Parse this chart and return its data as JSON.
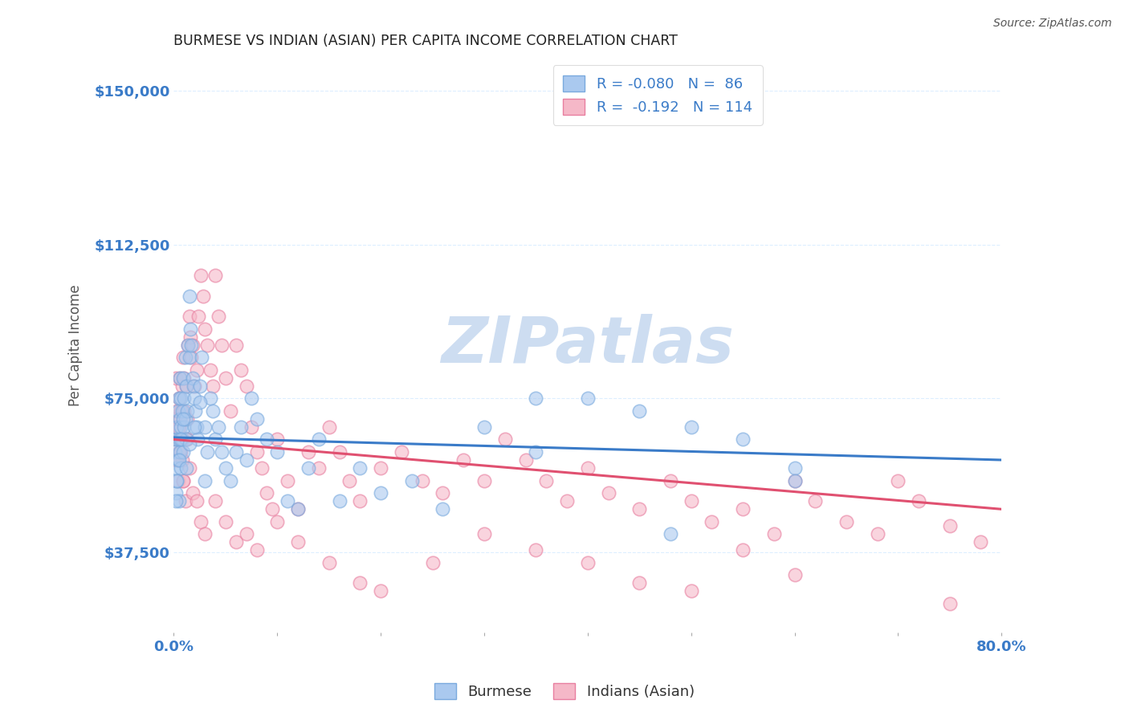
{
  "title": "BURMESE VS INDIAN (ASIAN) PER CAPITA INCOME CORRELATION CHART",
  "source": "Source: ZipAtlas.com",
  "ylabel": "Per Capita Income",
  "xmin": 0.0,
  "xmax": 0.8,
  "ymin": 18000,
  "ymax": 158000,
  "legend_blue_R": "-0.080",
  "legend_blue_N": "86",
  "legend_pink_R": "-0.192",
  "legend_pink_N": "114",
  "blue_fill_color": "#aac9ef",
  "pink_fill_color": "#f5b8c8",
  "blue_edge_color": "#7aaade",
  "pink_edge_color": "#e87fa0",
  "blue_line_color": "#3a7bc8",
  "pink_line_color": "#e05070",
  "watermark_color": "#c8daf0",
  "background_color": "#ffffff",
  "grid_color": "#ddeeff",
  "axis_label_color": "#3a7bc8",
  "title_color": "#222222",
  "legend_value_color": "#3a7bc8",
  "blue_points_x": [
    0.001,
    0.002,
    0.002,
    0.003,
    0.003,
    0.003,
    0.004,
    0.004,
    0.005,
    0.005,
    0.005,
    0.006,
    0.006,
    0.006,
    0.007,
    0.007,
    0.007,
    0.008,
    0.008,
    0.009,
    0.009,
    0.01,
    0.01,
    0.011,
    0.011,
    0.012,
    0.012,
    0.013,
    0.014,
    0.015,
    0.015,
    0.016,
    0.017,
    0.018,
    0.019,
    0.02,
    0.021,
    0.022,
    0.023,
    0.025,
    0.027,
    0.03,
    0.032,
    0.035,
    0.038,
    0.04,
    0.043,
    0.046,
    0.05,
    0.055,
    0.06,
    0.065,
    0.07,
    0.075,
    0.08,
    0.09,
    0.1,
    0.11,
    0.12,
    0.13,
    0.14,
    0.16,
    0.18,
    0.2,
    0.23,
    0.26,
    0.3,
    0.35,
    0.4,
    0.45,
    0.5,
    0.55,
    0.6,
    0.35,
    0.48,
    0.6,
    0.002,
    0.003,
    0.005,
    0.007,
    0.009,
    0.012,
    0.015,
    0.02,
    0.025,
    0.03
  ],
  "blue_points_y": [
    62000,
    58000,
    52000,
    65000,
    68000,
    55000,
    72000,
    60000,
    75000,
    65000,
    50000,
    70000,
    80000,
    62000,
    75000,
    68000,
    58000,
    72000,
    65000,
    80000,
    62000,
    75000,
    68000,
    85000,
    70000,
    78000,
    65000,
    72000,
    88000,
    100000,
    85000,
    92000,
    88000,
    80000,
    78000,
    75000,
    72000,
    68000,
    65000,
    78000,
    85000,
    68000,
    62000,
    75000,
    72000,
    65000,
    68000,
    62000,
    58000,
    55000,
    62000,
    68000,
    60000,
    75000,
    70000,
    65000,
    62000,
    50000,
    48000,
    58000,
    65000,
    50000,
    58000,
    52000,
    55000,
    48000,
    68000,
    62000,
    75000,
    72000,
    68000,
    65000,
    58000,
    75000,
    42000,
    55000,
    50000,
    55000,
    60000,
    65000,
    70000,
    58000,
    64000,
    68000,
    74000,
    55000
  ],
  "pink_points_x": [
    0.001,
    0.002,
    0.002,
    0.003,
    0.003,
    0.004,
    0.004,
    0.005,
    0.005,
    0.006,
    0.006,
    0.007,
    0.007,
    0.008,
    0.008,
    0.009,
    0.009,
    0.01,
    0.01,
    0.011,
    0.012,
    0.013,
    0.014,
    0.015,
    0.016,
    0.017,
    0.018,
    0.02,
    0.022,
    0.024,
    0.026,
    0.028,
    0.03,
    0.032,
    0.035,
    0.038,
    0.04,
    0.043,
    0.046,
    0.05,
    0.055,
    0.06,
    0.065,
    0.07,
    0.075,
    0.08,
    0.085,
    0.09,
    0.095,
    0.1,
    0.11,
    0.12,
    0.13,
    0.14,
    0.15,
    0.16,
    0.17,
    0.18,
    0.2,
    0.22,
    0.24,
    0.26,
    0.28,
    0.3,
    0.32,
    0.34,
    0.36,
    0.38,
    0.4,
    0.42,
    0.45,
    0.48,
    0.5,
    0.52,
    0.55,
    0.58,
    0.6,
    0.62,
    0.65,
    0.68,
    0.7,
    0.72,
    0.75,
    0.78,
    0.003,
    0.005,
    0.007,
    0.009,
    0.011,
    0.013,
    0.015,
    0.018,
    0.022,
    0.026,
    0.03,
    0.04,
    0.05,
    0.06,
    0.07,
    0.08,
    0.1,
    0.12,
    0.15,
    0.18,
    0.2,
    0.25,
    0.3,
    0.35,
    0.4,
    0.45,
    0.5,
    0.55,
    0.6,
    0.75
  ],
  "pink_points_y": [
    70000,
    65000,
    80000,
    60000,
    72000,
    68000,
    55000,
    75000,
    62000,
    70000,
    80000,
    65000,
    72000,
    60000,
    78000,
    55000,
    85000,
    80000,
    72000,
    65000,
    78000,
    70000,
    88000,
    95000,
    90000,
    85000,
    88000,
    78000,
    82000,
    95000,
    105000,
    100000,
    92000,
    88000,
    82000,
    78000,
    105000,
    95000,
    88000,
    80000,
    72000,
    88000,
    82000,
    78000,
    68000,
    62000,
    58000,
    52000,
    48000,
    65000,
    55000,
    48000,
    62000,
    58000,
    68000,
    62000,
    55000,
    50000,
    58000,
    62000,
    55000,
    52000,
    60000,
    55000,
    65000,
    60000,
    55000,
    50000,
    58000,
    52000,
    48000,
    55000,
    50000,
    45000,
    48000,
    42000,
    55000,
    50000,
    45000,
    42000,
    55000,
    50000,
    44000,
    40000,
    60000,
    68000,
    62000,
    55000,
    50000,
    65000,
    58000,
    52000,
    50000,
    45000,
    42000,
    50000,
    45000,
    40000,
    42000,
    38000,
    45000,
    40000,
    35000,
    30000,
    28000,
    35000,
    42000,
    38000,
    35000,
    30000,
    28000,
    38000,
    32000,
    25000
  ],
  "blue_line_x": [
    0.0,
    0.8
  ],
  "blue_line_y": [
    65500,
    60000
  ],
  "pink_line_x": [
    0.0,
    0.8
  ],
  "pink_line_y": [
    65000,
    48000
  ],
  "dot_size": 140,
  "dot_alpha": 0.6,
  "dot_linewidth": 1.2,
  "legend_label_blue": "Burmese",
  "legend_label_pink": "Indians (Asian)"
}
